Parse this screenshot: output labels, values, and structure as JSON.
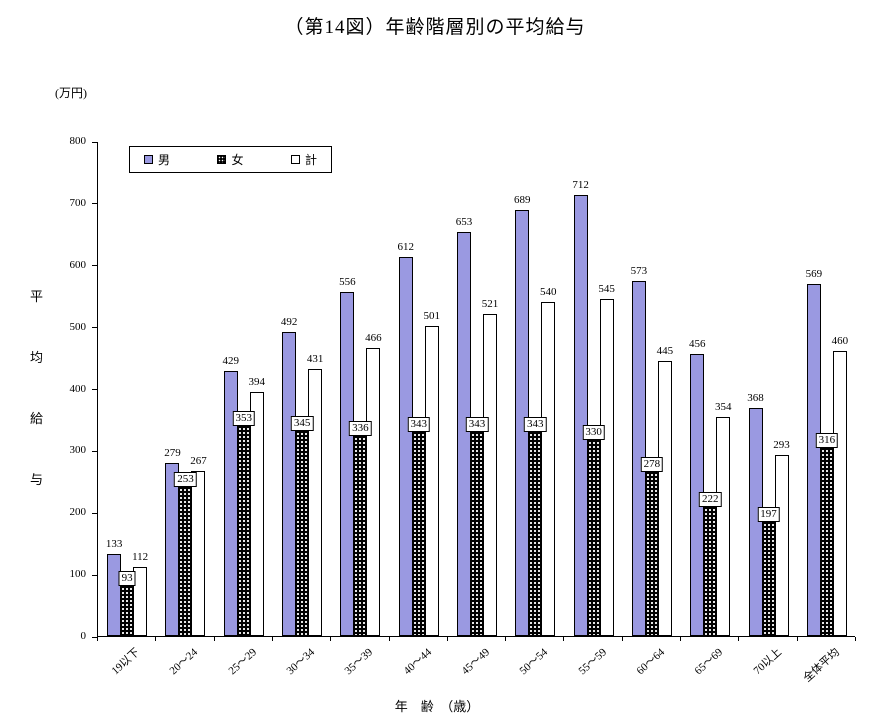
{
  "page": {
    "title": "（第14図）年齢階層別の平均給与",
    "unit_label": "(万円)",
    "x_axis_title": "年　齢　（歳）",
    "y_axis_title_chars": [
      "平",
      "均",
      "給",
      "与"
    ]
  },
  "chart_data": {
    "type": "bar",
    "title": "（第14図）年齢階層別の平均給与",
    "xlabel": "年齢（歳）",
    "ylabel": "平均給与（万円）",
    "ylim": [
      0,
      800
    ],
    "yticks": [
      0,
      100,
      200,
      300,
      400,
      500,
      600,
      700,
      800
    ],
    "grid": false,
    "legend_position": "top-left",
    "categories": [
      "19以下",
      "20～24",
      "25～29",
      "30～34",
      "35～39",
      "40～44",
      "45～49",
      "50～54",
      "55～59",
      "60～64",
      "65～69",
      "70以上",
      "全体平均"
    ],
    "series": [
      {
        "name": "男",
        "color": "#9a99e1",
        "pattern": "solid",
        "values": [
          133,
          279,
          429,
          492,
          556,
          612,
          653,
          689,
          712,
          573,
          456,
          368,
          569
        ]
      },
      {
        "name": "女",
        "color": "#000000",
        "pattern": "white-dots-on-black",
        "values": [
          93,
          253,
          353,
          345,
          336,
          343,
          343,
          343,
          330,
          278,
          222,
          197,
          316
        ]
      },
      {
        "name": "計",
        "color": "#ffffff",
        "pattern": "outline",
        "values": [
          112,
          267,
          394,
          431,
          466,
          501,
          521,
          540,
          545,
          445,
          354,
          293,
          460
        ]
      }
    ]
  }
}
